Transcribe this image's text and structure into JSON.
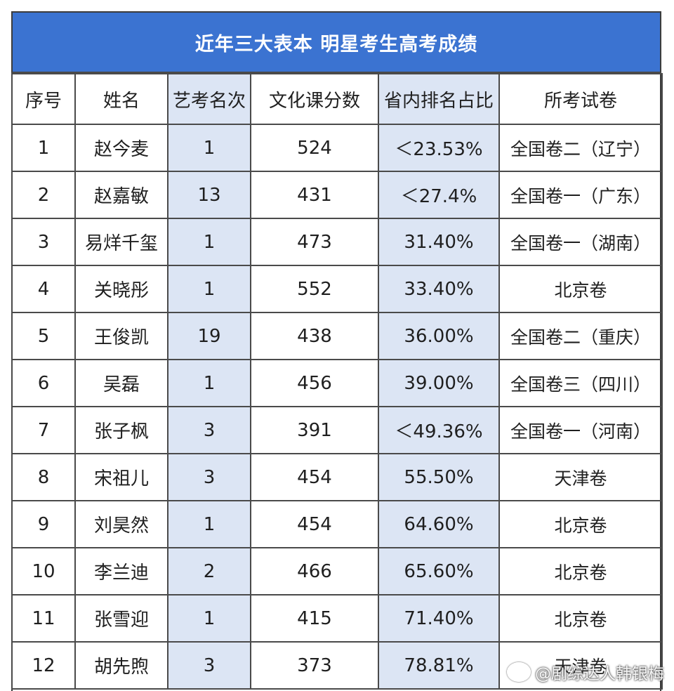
{
  "title": "近年三大表本 明星考生高考成绩",
  "headers": [
    "序号",
    "姓名",
    "艺考名次",
    "文化课分数",
    "省内排名占比",
    "所考试卷"
  ],
  "rows": [
    {
      "no": "1",
      "name": "赵今麦",
      "art_rank": "1",
      "score": "524",
      "pct": "＜23.53%",
      "exam": "全国卷二（辽宁）"
    },
    {
      "no": "2",
      "name": "赵嘉敏",
      "art_rank": "13",
      "score": "431",
      "pct": "＜27.4%",
      "exam": "全国卷一（广东）"
    },
    {
      "no": "3",
      "name": "易烊千玺",
      "art_rank": "1",
      "score": "473",
      "pct": "31.40%",
      "exam": "全国卷一（湖南）"
    },
    {
      "no": "4",
      "name": "关晓彤",
      "art_rank": "1",
      "score": "552",
      "pct": "33.40%",
      "exam": "北京卷"
    },
    {
      "no": "5",
      "name": "王俊凯",
      "art_rank": "19",
      "score": "438",
      "pct": "36.00%",
      "exam": "全国卷二（重庆）"
    },
    {
      "no": "6",
      "name": "吴磊",
      "art_rank": "1",
      "score": "456",
      "pct": "39.00%",
      "exam": "全国卷三（四川）"
    },
    {
      "no": "7",
      "name": "张子枫",
      "art_rank": "3",
      "score": "391",
      "pct": "＜49.36%",
      "exam": "全国卷一（河南）"
    },
    {
      "no": "8",
      "name": "宋祖儿",
      "art_rank": "3",
      "score": "454",
      "pct": "55.50%",
      "exam": "天津卷"
    },
    {
      "no": "9",
      "name": "刘昊然",
      "art_rank": "1",
      "score": "454",
      "pct": "64.60%",
      "exam": "北京卷"
    },
    {
      "no": "10",
      "name": "李兰迪",
      "art_rank": "2",
      "score": "466",
      "pct": "65.60%",
      "exam": "北京卷"
    },
    {
      "no": "11",
      "name": "张雪迎",
      "art_rank": "1",
      "score": "415",
      "pct": "71.40%",
      "exam": "北京卷"
    },
    {
      "no": "12",
      "name": "胡先煦",
      "art_rank": "3",
      "score": "373",
      "pct": "78.81%",
      "exam": "天津卷"
    }
  ],
  "watermark": "@剧综达人韩银梅",
  "colors": {
    "title_bg": "#3b73d1",
    "shaded_column": "#dce5f4",
    "border": "#4a4a4a"
  }
}
